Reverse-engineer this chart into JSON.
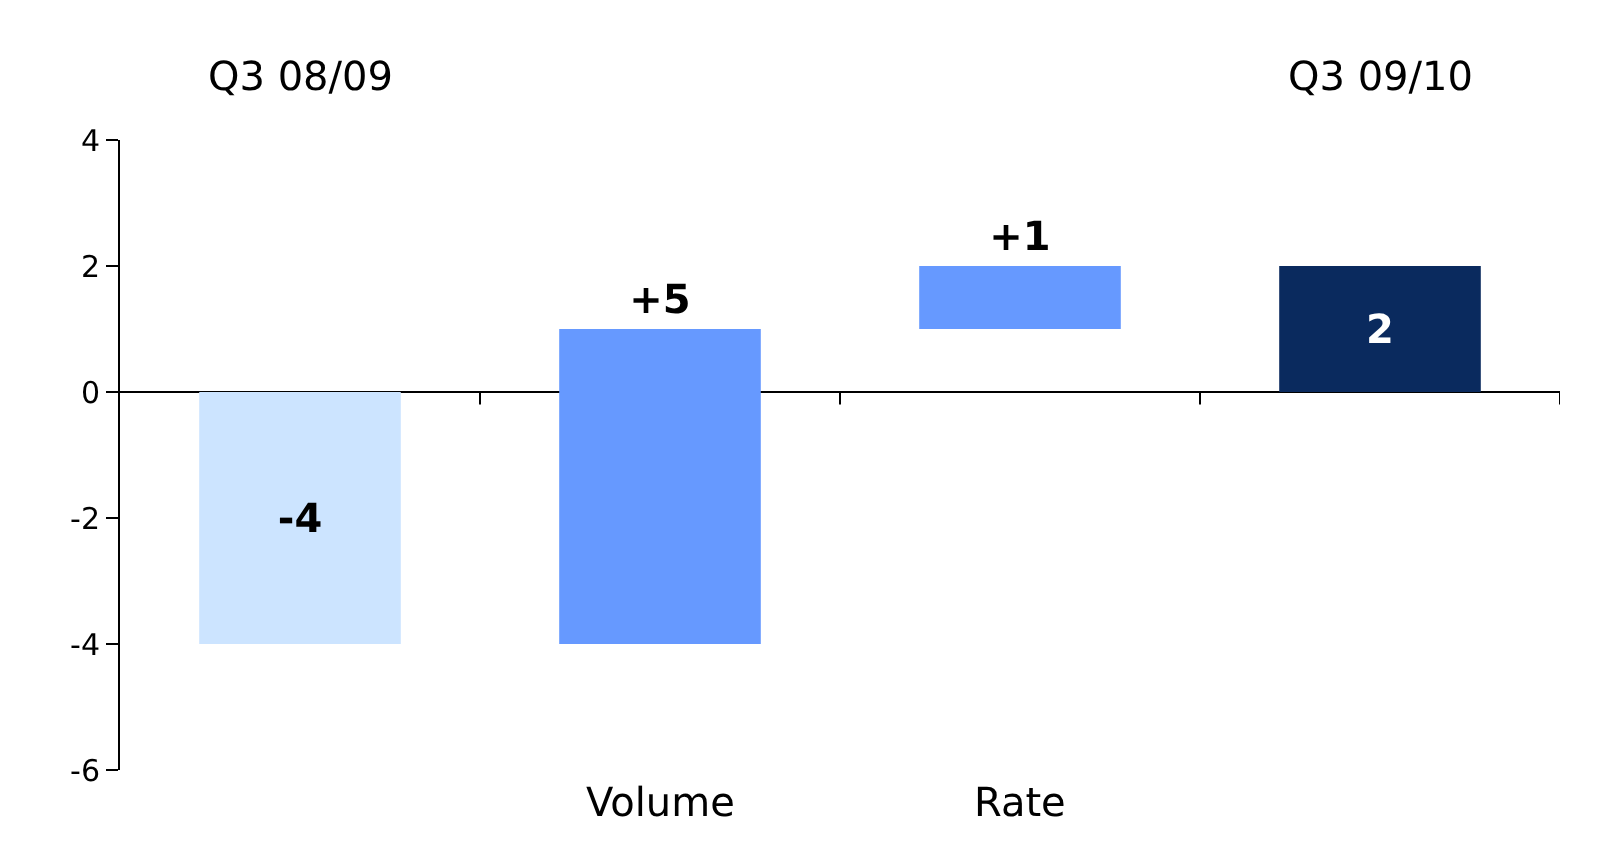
{
  "chart_data": {
    "type": "bar",
    "categories": [
      "Q3 08/09",
      "Volume",
      "Rate",
      "Q3 09/10"
    ],
    "base": [
      0,
      -4,
      1,
      0
    ],
    "values": [
      -4,
      5,
      1,
      2
    ],
    "value_labels": [
      "-4",
      "+5",
      "+1",
      "2"
    ],
    "colors": [
      "#cce4ff",
      "#6699ff",
      "#6699ff",
      "#0a2a5e"
    ],
    "ylim": [
      -6,
      4
    ],
    "yticks": [
      -6,
      -4,
      -2,
      0,
      2,
      4
    ],
    "legend": false
  }
}
